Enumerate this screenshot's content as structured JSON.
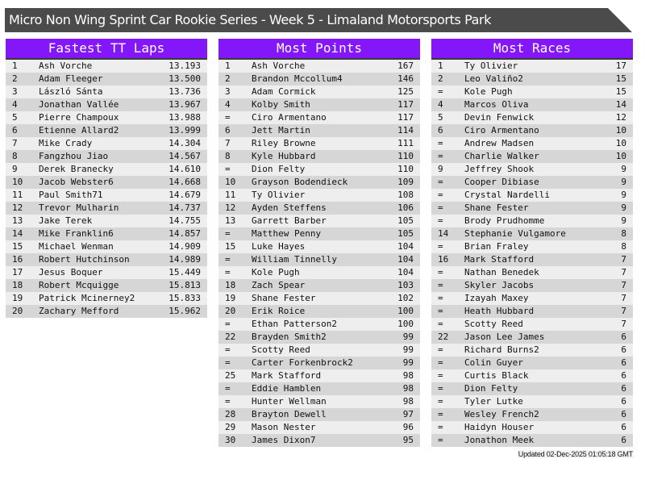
{
  "title": "Micro Non Wing Sprint Car Rookie Series - Week 5 - Limaland Motorsports Park",
  "colors": {
    "header_purple": "#8417fa",
    "title_bar": "#4b4b4b",
    "row_light": "#eeeeee",
    "row_dark": "#d6d6d6"
  },
  "tables": [
    {
      "title": "Fastest TT Laps",
      "rows": [
        [
          "1",
          "Ash Vorche",
          "13.193"
        ],
        [
          "2",
          "Adam Fleeger",
          "13.500"
        ],
        [
          "3",
          "László Sánta",
          "13.736"
        ],
        [
          "4",
          "Jonathan Vallée",
          "13.967"
        ],
        [
          "5",
          "Pierre Champoux",
          "13.988"
        ],
        [
          "6",
          "Etienne Allard2",
          "13.999"
        ],
        [
          "7",
          "Mike Crady",
          "14.304"
        ],
        [
          "8",
          "Fangzhou Jiao",
          "14.567"
        ],
        [
          "9",
          "Derek Branecky",
          "14.610"
        ],
        [
          "10",
          "Jacob Webster6",
          "14.668"
        ],
        [
          "11",
          "Paul Smith71",
          "14.679"
        ],
        [
          "12",
          "Trevor Mulharin",
          "14.737"
        ],
        [
          "13",
          "Jake Terek",
          "14.755"
        ],
        [
          "14",
          "Mike Franklin6",
          "14.857"
        ],
        [
          "15",
          "Michael Wenman",
          "14.909"
        ],
        [
          "16",
          "Robert Hutchinson",
          "14.989"
        ],
        [
          "17",
          "Jesus Boquer",
          "15.449"
        ],
        [
          "18",
          "Robert Mcquigge",
          "15.813"
        ],
        [
          "19",
          "Patrick Mcinerney2",
          "15.833"
        ],
        [
          "20",
          "Zachary Mefford",
          "15.962"
        ]
      ]
    },
    {
      "title": "Most Points",
      "rows": [
        [
          "1",
          "Ash Vorche",
          "167"
        ],
        [
          "2",
          "Brandon Mccollum4",
          "146"
        ],
        [
          "3",
          "Adam Cormick",
          "125"
        ],
        [
          "4",
          "Kolby Smith",
          "117"
        ],
        [
          "=",
          "Ciro Armentano",
          "117"
        ],
        [
          "6",
          "Jett Martin",
          "114"
        ],
        [
          "7",
          "Riley Browne",
          "111"
        ],
        [
          "8",
          "Kyle Hubbard",
          "110"
        ],
        [
          "=",
          "Dion Felty",
          "110"
        ],
        [
          "10",
          "Grayson Bodendieck",
          "109"
        ],
        [
          "11",
          "Ty Olivier",
          "108"
        ],
        [
          "12",
          "Ayden Steffens",
          "106"
        ],
        [
          "13",
          "Garrett Barber",
          "105"
        ],
        [
          "=",
          "Matthew Penny",
          "105"
        ],
        [
          "15",
          "Luke Hayes",
          "104"
        ],
        [
          "=",
          "William Tinnelly",
          "104"
        ],
        [
          "=",
          "Kole Pugh",
          "104"
        ],
        [
          "18",
          "Zach Spear",
          "103"
        ],
        [
          "19",
          "Shane Fester",
          "102"
        ],
        [
          "20",
          "Erik Roice",
          "100"
        ],
        [
          "=",
          "Ethan Patterson2",
          "100"
        ],
        [
          "22",
          "Brayden Smith2",
          "99"
        ],
        [
          "=",
          "Scotty Reed",
          "99"
        ],
        [
          "=",
          "Carter Forkenbrock2",
          "99"
        ],
        [
          "25",
          "Mark Stafford",
          "98"
        ],
        [
          "=",
          "Eddie Hamblen",
          "98"
        ],
        [
          "=",
          "Hunter Wellman",
          "98"
        ],
        [
          "28",
          "Brayton Dewell",
          "97"
        ],
        [
          "29",
          "Mason Nester",
          "96"
        ],
        [
          "30",
          "James Dixon7",
          "95"
        ]
      ]
    },
    {
      "title": "Most Races",
      "rows": [
        [
          "1",
          "Ty Olivier",
          "17"
        ],
        [
          "2",
          "Leo Valiño2",
          "15"
        ],
        [
          "=",
          "Kole Pugh",
          "15"
        ],
        [
          "4",
          "Marcos Oliva",
          "14"
        ],
        [
          "5",
          "Devin Fenwick",
          "12"
        ],
        [
          "6",
          "Ciro Armentano",
          "10"
        ],
        [
          "=",
          "Andrew Madsen",
          "10"
        ],
        [
          "=",
          "Charlie Walker",
          "10"
        ],
        [
          "9",
          "Jeffrey Shook",
          "9"
        ],
        [
          "=",
          "Cooper Dibiase",
          "9"
        ],
        [
          "=",
          "Crystal Nardelli",
          "9"
        ],
        [
          "=",
          "Shane Fester",
          "9"
        ],
        [
          "=",
          "Brody Prudhomme",
          "9"
        ],
        [
          "14",
          "Stephanie Vulgamore",
          "8"
        ],
        [
          "=",
          "Brian Fraley",
          "8"
        ],
        [
          "16",
          "Mark Stafford",
          "7"
        ],
        [
          "=",
          "Nathan Benedek",
          "7"
        ],
        [
          "=",
          "Skyler Jacobs",
          "7"
        ],
        [
          "=",
          "Izayah Maxey",
          "7"
        ],
        [
          "=",
          "Heath Hubbard",
          "7"
        ],
        [
          "=",
          "Scotty Reed",
          "7"
        ],
        [
          "22",
          "Jason Lee James",
          "6"
        ],
        [
          "=",
          "Richard Burns2",
          "6"
        ],
        [
          "=",
          "Colin Guyer",
          "6"
        ],
        [
          "=",
          "Curtis Black",
          "6"
        ],
        [
          "=",
          "Dion Felty",
          "6"
        ],
        [
          "=",
          "Tyler Lutke",
          "6"
        ],
        [
          "=",
          "Wesley French2",
          "6"
        ],
        [
          "=",
          "Haidyn Houser",
          "6"
        ],
        [
          "=",
          "Jonathon Meek",
          "6"
        ]
      ]
    }
  ],
  "footer": "Updated 02-Dec-2025 01:05:18 GMT"
}
